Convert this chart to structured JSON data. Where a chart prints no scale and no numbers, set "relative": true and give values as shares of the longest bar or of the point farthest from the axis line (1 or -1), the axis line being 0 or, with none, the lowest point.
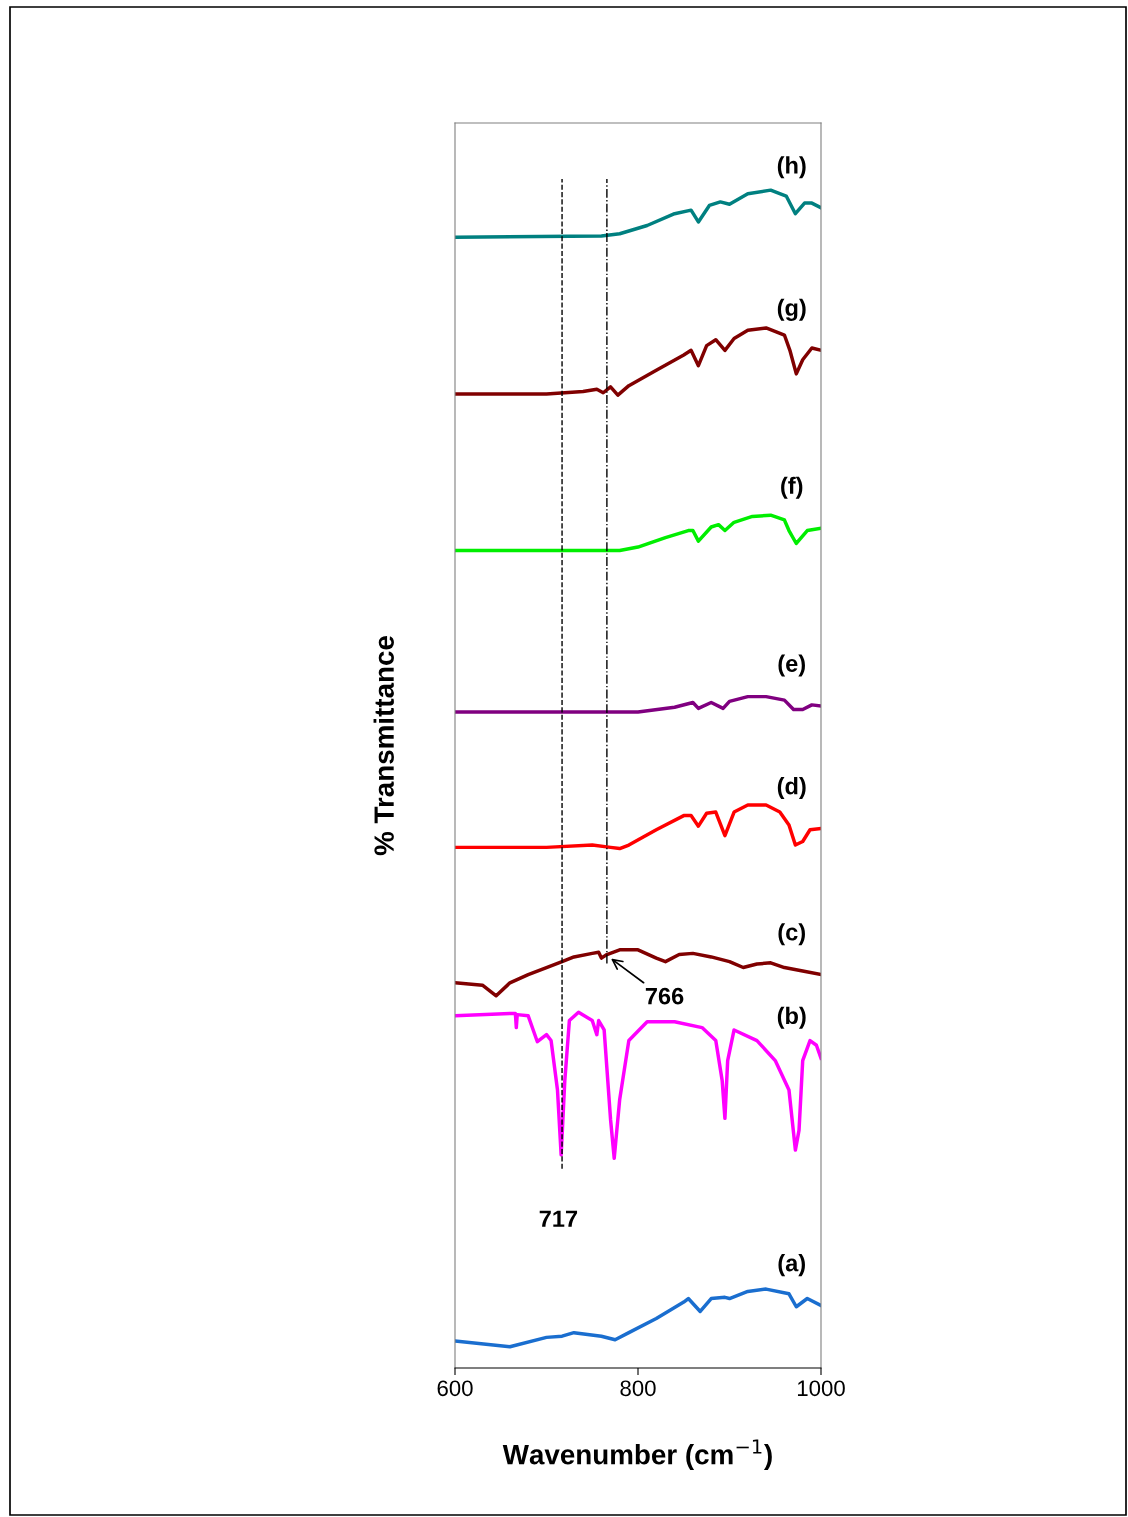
{
  "chart_data": {
    "type": "line",
    "relative": true,
    "xlabel": "Wavenumber (cm$^{−1}$)",
    "ylabel": "% Transmittance",
    "xlim": [
      600,
      1000
    ],
    "xticks": [
      600,
      800,
      1000
    ],
    "tick_labels": "x",
    "grid": false,
    "legend": false,
    "marker": "none",
    "line_style": "solid",
    "series": [
      {
        "name": "(a)",
        "color": "#1a6ecf",
        "x": [
          600,
          660,
          700,
          717,
          730,
          760,
          775,
          790,
          820,
          850,
          855,
          868,
          880,
          895,
          900,
          920,
          940,
          965,
          973,
          985,
          1000
        ],
        "values": [
          0.023,
          0.018,
          0.026,
          0.027,
          0.03,
          0.027,
          0.024,
          0.03,
          0.042,
          0.056,
          0.059,
          0.048,
          0.059,
          0.06,
          0.059,
          0.065,
          0.067,
          0.063,
          0.052,
          0.059,
          0.053
        ]
      },
      {
        "name": "(b)",
        "color": "#ff00ff",
        "x": [
          600,
          660,
          666,
          667,
          668,
          680,
          690,
          700,
          705,
          712,
          716,
          720,
          725,
          735,
          750,
          755,
          757,
          763,
          770,
          774,
          780,
          790,
          810,
          840,
          870,
          885,
          892,
          895,
          898,
          905,
          930,
          950,
          965,
          972,
          976,
          980,
          988,
          995,
          1000
        ],
        "values": [
          0.299,
          0.301,
          0.301,
          0.289,
          0.3,
          0.299,
          0.277,
          0.283,
          0.278,
          0.236,
          0.181,
          0.244,
          0.295,
          0.302,
          0.295,
          0.283,
          0.295,
          0.287,
          0.211,
          0.178,
          0.228,
          0.278,
          0.294,
          0.294,
          0.289,
          0.278,
          0.244,
          0.212,
          0.261,
          0.287,
          0.278,
          0.261,
          0.236,
          0.185,
          0.202,
          0.261,
          0.278,
          0.274,
          0.263
        ]
      },
      {
        "name": "(c)",
        "color": "#800000",
        "x": [
          600,
          630,
          645,
          660,
          680,
          700,
          717,
          730,
          750,
          757,
          760,
          766,
          780,
          800,
          820,
          830,
          845,
          860,
          880,
          900,
          915,
          930,
          945,
          960,
          980,
          1000
        ],
        "values": [
          0.327,
          0.325,
          0.316,
          0.327,
          0.334,
          0.34,
          0.345,
          0.349,
          0.352,
          0.353,
          0.348,
          0.351,
          0.355,
          0.355,
          0.348,
          0.345,
          0.351,
          0.352,
          0.349,
          0.345,
          0.34,
          0.343,
          0.344,
          0.34,
          0.337,
          0.334
        ]
      },
      {
        "name": "(d)",
        "color": "#ff0000",
        "x": [
          600,
          700,
          750,
          770,
          780,
          790,
          820,
          850,
          858,
          866,
          875,
          885,
          895,
          905,
          920,
          940,
          955,
          965,
          972,
          980,
          988,
          1000
        ],
        "values": [
          0.442,
          0.442,
          0.444,
          0.442,
          0.441,
          0.444,
          0.457,
          0.469,
          0.469,
          0.46,
          0.471,
          0.472,
          0.452,
          0.472,
          0.478,
          0.478,
          0.472,
          0.461,
          0.444,
          0.447,
          0.457,
          0.458
        ]
      },
      {
        "name": "(e)",
        "color": "#800080",
        "x": [
          600,
          800,
          840,
          860,
          866,
          880,
          893,
          900,
          920,
          940,
          960,
          970,
          980,
          990,
          1000
        ],
        "values": [
          0.557,
          0.557,
          0.561,
          0.565,
          0.56,
          0.565,
          0.56,
          0.566,
          0.57,
          0.57,
          0.567,
          0.559,
          0.559,
          0.563,
          0.562
        ]
      },
      {
        "name": "(f)",
        "color": "#00ee00",
        "x": [
          600,
          700,
          780,
          800,
          830,
          855,
          860,
          866,
          880,
          888,
          895,
          905,
          925,
          945,
          960,
          965,
          973,
          985,
          1000
        ],
        "values": [
          0.694,
          0.694,
          0.694,
          0.697,
          0.705,
          0.711,
          0.711,
          0.702,
          0.714,
          0.716,
          0.711,
          0.718,
          0.723,
          0.724,
          0.72,
          0.711,
          0.7,
          0.711,
          0.713
        ]
      },
      {
        "name": "(g)",
        "color": "#800000",
        "x": [
          600,
          700,
          740,
          755,
          762,
          770,
          778,
          790,
          820,
          850,
          858,
          866,
          875,
          885,
          895,
          905,
          920,
          940,
          960,
          966,
          973,
          980,
          990,
          1000
        ],
        "values": [
          0.827,
          0.827,
          0.829,
          0.831,
          0.828,
          0.833,
          0.826,
          0.834,
          0.847,
          0.86,
          0.864,
          0.851,
          0.868,
          0.873,
          0.864,
          0.874,
          0.881,
          0.883,
          0.877,
          0.864,
          0.844,
          0.856,
          0.866,
          0.864
        ]
      },
      {
        "name": "(h)",
        "color": "#008080",
        "x": [
          600,
          760,
          780,
          810,
          840,
          858,
          866,
          878,
          890,
          900,
          920,
          945,
          962,
          972,
          982,
          990,
          1000
        ],
        "values": [
          0.96,
          0.961,
          0.963,
          0.97,
          0.98,
          0.983,
          0.973,
          0.987,
          0.99,
          0.988,
          0.997,
          1.0,
          0.995,
          0.98,
          0.989,
          0.989,
          0.985
        ]
      }
    ],
    "ref_lines": [
      {
        "axis": "x",
        "value": 717,
        "label": "717",
        "line_style": "dashed",
        "color": "#000000"
      },
      {
        "axis": "x",
        "value": 766,
        "line_style": "dashdot",
        "color": "#000000"
      }
    ],
    "annotations": [
      {
        "text": "766",
        "x": 766,
        "y": 0.351
      }
    ]
  }
}
